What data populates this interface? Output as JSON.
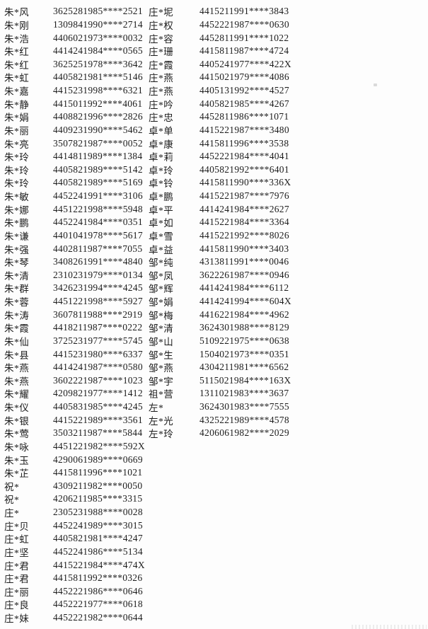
{
  "document": {
    "background_color": "#fdfdfd",
    "text_color": "#1c1c1c",
    "columns": [
      {
        "rows": [
          {
            "name": "朱*风",
            "id": "3625281985****2521"
          },
          {
            "name": "朱*刚",
            "id": "1309841990****2714"
          },
          {
            "name": "朱*浩",
            "id": "4406021973****0032"
          },
          {
            "name": "朱*红",
            "id": "4414241984****0565"
          },
          {
            "name": "朱*红",
            "id": "3625251978****3642"
          },
          {
            "name": "朱*虹",
            "id": "4405821981****5146"
          },
          {
            "name": "朱*嘉",
            "id": "4415231998****6321"
          },
          {
            "name": "朱*静",
            "id": "4415011992****4061"
          },
          {
            "name": "朱*娟",
            "id": "4408821996****2826"
          },
          {
            "name": "朱*丽",
            "id": "4409231990****5462"
          },
          {
            "name": "朱*亮",
            "id": "3507821987****0052"
          },
          {
            "name": "朱*玲",
            "id": "4414811989****1384"
          },
          {
            "name": "朱*玲",
            "id": "4405821989****5142"
          },
          {
            "name": "朱*玲",
            "id": "4405821989****5169"
          },
          {
            "name": "朱*敏",
            "id": "4452241991****3106"
          },
          {
            "name": "朱*娜",
            "id": "4451221998****5948"
          },
          {
            "name": "朱*鹏",
            "id": "4452241984****0351"
          },
          {
            "name": "朱*谦",
            "id": "4401041978****5617"
          },
          {
            "name": "朱*强",
            "id": "4402811987****7055"
          },
          {
            "name": "朱*琴",
            "id": "3408261991****4840"
          },
          {
            "name": "朱*清",
            "id": "2310231979****0134"
          },
          {
            "name": "朱*群",
            "id": "3426231994****4245"
          },
          {
            "name": "朱*蓉",
            "id": "4451221998****5927"
          },
          {
            "name": "朱*涛",
            "id": "3607811988****2919"
          },
          {
            "name": "朱*霞",
            "id": "4418211987****0222"
          },
          {
            "name": "朱*仙",
            "id": "3725231977****5745"
          },
          {
            "name": "朱*县",
            "id": "4415231980****6337"
          },
          {
            "name": "朱*燕",
            "id": "4414241987****0580"
          },
          {
            "name": "朱*燕",
            "id": "3602221987****1023"
          },
          {
            "name": "朱*耀",
            "id": "4209821977****1412"
          },
          {
            "name": "朱*仪",
            "id": "4405831985****4245"
          },
          {
            "name": "朱*银",
            "id": "4415221989****3561"
          },
          {
            "name": "朱*莺",
            "id": "3503211987****5844"
          },
          {
            "name": "朱*咏",
            "id": "4451221982****592X"
          },
          {
            "name": "朱*玉",
            "id": "4290061989****0669"
          },
          {
            "name": "朱*芷",
            "id": "4415811996****1021"
          },
          {
            "name": "祝*",
            "id": "4309211982****0050"
          },
          {
            "name": "祝*",
            "id": "4206211985****3315"
          },
          {
            "name": "庄*",
            "id": "2305231988****0028"
          },
          {
            "name": "庄*贝",
            "id": "4452241989****3015"
          },
          {
            "name": "庄*虹",
            "id": "4405821981****4247"
          },
          {
            "name": "庄*坚",
            "id": "4452241986****5134"
          },
          {
            "name": "庄*君",
            "id": "4415221984****474X"
          },
          {
            "name": "庄*君",
            "id": "4415811992****0326"
          },
          {
            "name": "庄*丽",
            "id": "4452221986****0646"
          },
          {
            "name": "庄*良",
            "id": "4452221977****0618"
          },
          {
            "name": "庄*妹",
            "id": "4452221982****0644"
          }
        ]
      },
      {
        "rows": [
          {
            "name": "庄*坭",
            "id": "4415211991****3843"
          },
          {
            "name": "庄*权",
            "id": "4452221987****0630"
          },
          {
            "name": "庄*容",
            "id": "4452811991****1022"
          },
          {
            "name": "庄*珊",
            "id": "4415811987****4724"
          },
          {
            "name": "庄*霞",
            "id": "4405241977****422X"
          },
          {
            "name": "庄*燕",
            "id": "4415021979****4086"
          },
          {
            "name": "庄*燕",
            "id": "4405131992****4527"
          },
          {
            "name": "庄*吟",
            "id": "4405821985****4267"
          },
          {
            "name": "庄*忠",
            "id": "4452811986****1071"
          },
          {
            "name": "卓*单",
            "id": "4415221987****3480"
          },
          {
            "name": "卓*康",
            "id": "4415811996****3538"
          },
          {
            "name": "卓*莉",
            "id": "4452221984****4041"
          },
          {
            "name": "卓*玲",
            "id": "4405821992****6401"
          },
          {
            "name": "卓*铃",
            "id": "4415811990****336X"
          },
          {
            "name": "卓*鹏",
            "id": "4415221987****7976"
          },
          {
            "name": "卓*平",
            "id": "4414241984****2627"
          },
          {
            "name": "卓*如",
            "id": "4415221984****3364"
          },
          {
            "name": "卓*雪",
            "id": "4415221992****8026"
          },
          {
            "name": "卓*益",
            "id": "4415811990****3403"
          },
          {
            "name": "邹*纯",
            "id": "4313811991****0046"
          },
          {
            "name": "邹*凤",
            "id": "3622261987****0946"
          },
          {
            "name": "邹*辉",
            "id": "4414241984****6112"
          },
          {
            "name": "邹*娟",
            "id": "4414241994****604X"
          },
          {
            "name": "邹*梅",
            "id": "4416221984****4962"
          },
          {
            "name": "邹*清",
            "id": "3624301988****8129"
          },
          {
            "name": "邹*山",
            "id": "5109221975****0638"
          },
          {
            "name": "邹*生",
            "id": "1504021973****0351"
          },
          {
            "name": "邹*燕",
            "id": "4304211981****6562"
          },
          {
            "name": "邹*宇",
            "id": "5115021984****163X"
          },
          {
            "name": "祖*营",
            "id": "1311021983****3637"
          },
          {
            "name": "左*",
            "id": "3624301983****7555"
          },
          {
            "name": "左*光",
            "id": "4325221989****4578"
          },
          {
            "name": "左*玲",
            "id": "4206061982****2029"
          }
        ]
      }
    ]
  }
}
